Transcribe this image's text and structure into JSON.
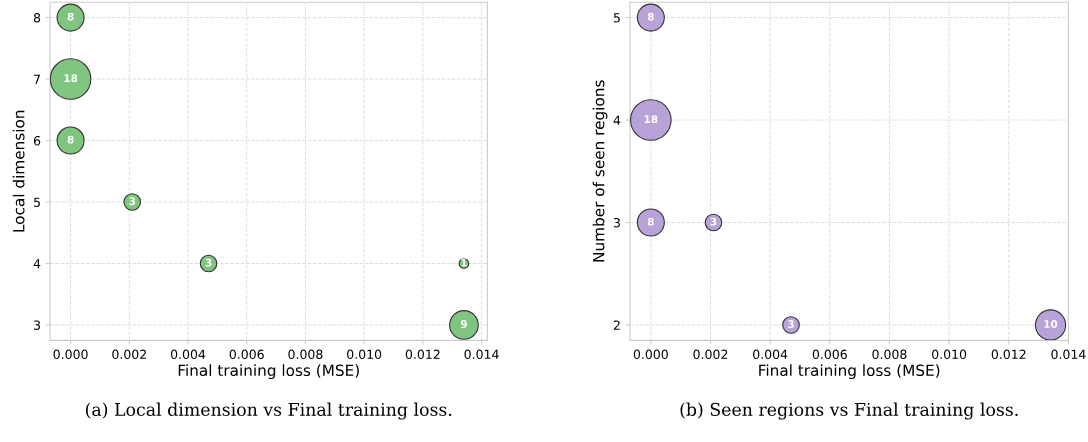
{
  "chart_data": [
    {
      "type": "bubble",
      "xlabel": "Final training loss (MSE)",
      "ylabel": "Local dimension",
      "x": [
        0.0,
        0.0,
        0.0,
        0.0021,
        0.0047,
        0.0134,
        0.0134
      ],
      "values": [
        8,
        7,
        6,
        5,
        4,
        4,
        3
      ],
      "sizes": [
        0.444,
        1,
        0.444,
        0.167,
        0.167,
        0.056,
        0.5
      ],
      "color": "#7fc47f",
      "xlim": [
        -0.0007,
        0.0142
      ],
      "xticks": [
        {
          "value": 0.0,
          "label": "0.000"
        },
        {
          "value": 0.002,
          "label": "0.002"
        },
        {
          "value": 0.004,
          "label": "0.004"
        },
        {
          "value": 0.006,
          "label": "0.006"
        },
        {
          "value": 0.008,
          "label": "0.008"
        },
        {
          "value": 0.01,
          "label": "0.010"
        },
        {
          "value": 0.012,
          "label": "0.012"
        },
        {
          "value": 0.014,
          "label": "0.014"
        }
      ],
      "ylim": [
        2.75,
        8.25
      ],
      "yticks": [
        3,
        4,
        5,
        6,
        7,
        8
      ],
      "grid": true,
      "annotations": [
        "(a) Local dimension vs Final training loss.",
        {
          "text": "8",
          "x": 0.0,
          "y": 8
        },
        {
          "text": "18",
          "x": 0.0,
          "y": 7
        },
        {
          "text": "8",
          "x": 0.0,
          "y": 6
        },
        {
          "text": "3",
          "x": 0.0021,
          "y": 5
        },
        {
          "text": "3",
          "x": 0.0047,
          "y": 4
        },
        {
          "text": "1",
          "x": 0.0134,
          "y": 4
        },
        {
          "text": "9",
          "x": 0.0134,
          "y": 3
        }
      ]
    },
    {
      "type": "bubble",
      "xlabel": "Final training loss (MSE)",
      "ylabel": "Number of seen regions",
      "x": [
        0.0,
        0.0,
        0.0,
        0.0021,
        0.0047,
        0.0134
      ],
      "values": [
        5,
        4,
        3,
        3,
        2,
        2
      ],
      "sizes": [
        0.444,
        1,
        0.444,
        0.167,
        0.167,
        0.556
      ],
      "color": "#b9a2d8",
      "xlim": [
        -0.0007,
        0.014
      ],
      "xticks": [
        {
          "value": 0.0,
          "label": "0.000"
        },
        {
          "value": 0.002,
          "label": "0.002"
        },
        {
          "value": 0.004,
          "label": "0.004"
        },
        {
          "value": 0.006,
          "label": "0.006"
        },
        {
          "value": 0.008,
          "label": "0.008"
        },
        {
          "value": 0.01,
          "label": "0.010"
        },
        {
          "value": 0.012,
          "label": "0.012"
        },
        {
          "value": 0.014,
          "label": "0.014"
        }
      ],
      "ylim": [
        1.85,
        5.15
      ],
      "yticks": [
        2,
        3,
        4,
        5
      ],
      "grid": true,
      "annotations": [
        "(b) Seen regions vs Final training loss.",
        {
          "text": "8",
          "x": 0.0,
          "y": 5
        },
        {
          "text": "18",
          "x": 0.0,
          "y": 4
        },
        {
          "text": "8",
          "x": 0.0,
          "y": 3
        },
        {
          "text": "3",
          "x": 0.0021,
          "y": 3
        },
        {
          "text": "3",
          "x": 0.0047,
          "y": 2
        },
        {
          "text": "10",
          "x": 0.0134,
          "y": 2
        }
      ]
    }
  ]
}
